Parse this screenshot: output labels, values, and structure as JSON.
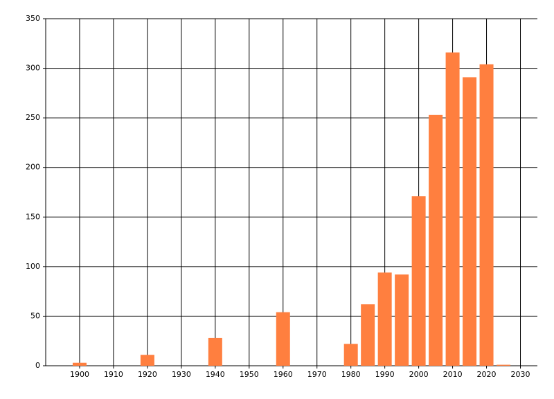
{
  "chart_data": {
    "type": "bar",
    "x": [
      1900,
      1920,
      1940,
      1960,
      1980,
      1985,
      1990,
      1995,
      2000,
      2005,
      2010,
      2015,
      2020,
      2025
    ],
    "values": [
      3,
      11,
      28,
      54,
      22,
      62,
      94,
      92,
      171,
      253,
      316,
      291,
      304,
      1
    ],
    "color": "#ff7f3f",
    "xlim": [
      1890,
      2035
    ],
    "xticks": [
      1900,
      1910,
      1920,
      1930,
      1940,
      1950,
      1960,
      1970,
      1980,
      1990,
      2000,
      2010,
      2020,
      2030
    ],
    "ylim": [
      0,
      350
    ],
    "yticks": [
      0,
      50,
      100,
      150,
      200,
      250,
      300,
      350
    ],
    "grid": true
  }
}
